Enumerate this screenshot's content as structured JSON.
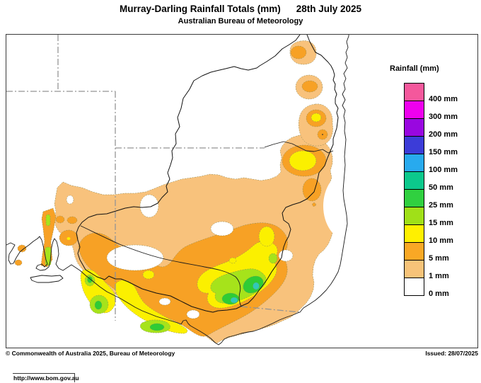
{
  "title": {
    "main": "Murray-Darling Rainfall Totals (mm)",
    "date": "28th July 2025",
    "subtitle": "Australian Bureau of Meteorology"
  },
  "legend": {
    "title": "Rainfall (mm)",
    "entries": [
      {
        "label": "400 mm",
        "color": "#F4589C"
      },
      {
        "label": "300 mm",
        "color": "#EE00EE"
      },
      {
        "label": "200 mm",
        "color": "#9907E0"
      },
      {
        "label": "150 mm",
        "color": "#3C3CD8"
      },
      {
        "label": "100 mm",
        "color": "#28AAEE"
      },
      {
        "label": "50 mm",
        "color": "#0CC98C"
      },
      {
        "label": "25 mm",
        "color": "#30D040"
      },
      {
        "label": "15 mm",
        "color": "#A0E018"
      },
      {
        "label": "10 mm",
        "color": "#FFF000"
      },
      {
        "label": "5 mm",
        "color": "#F9A825"
      },
      {
        "label": "1 mm",
        "color": "#F7C379"
      },
      {
        "label": "0 mm",
        "color": "#FFFFFF"
      }
    ]
  },
  "map_palette": {
    "light": "#F8C27C",
    "dark": "#F7A125",
    "yellow": "#FBF000",
    "ygreen": "#A6E31B",
    "green": "#2ECC35",
    "cyan": "#30C9B8"
  },
  "footer": {
    "url": "http://www.bom.gov.au",
    "copyright": "© Commonwealth of Australia 2025, Bureau of Meteorology",
    "issued": "Issued: 28/07/2025"
  }
}
